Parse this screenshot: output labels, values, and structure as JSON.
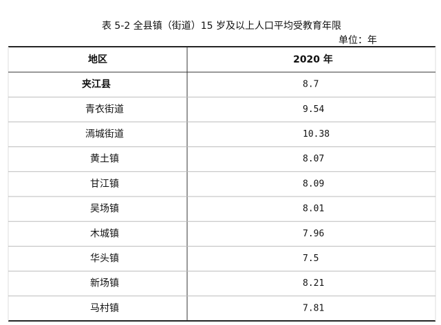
{
  "title": "表 5-2 全县镇（街道）15 岁及以上人口平均受教育年限",
  "unit": "单位：年",
  "table": {
    "header": [
      "地区",
      "2020 年"
    ],
    "rows": [
      [
        "夹江县",
        8.7
      ],
      [
        "青衣街道",
        9.54
      ],
      [
        "漹城街道",
        10.38
      ],
      [
        "黄土镇",
        8.07
      ],
      [
        "甘江镇",
        8.09
      ],
      [
        "吴场镇",
        8.01
      ],
      [
        "木城镇",
        7.96
      ],
      [
        "华头镇",
        7.5
      ],
      [
        "新场镇",
        8.21
      ],
      [
        "马村镇",
        7.81
      ]
    ]
  }
}
